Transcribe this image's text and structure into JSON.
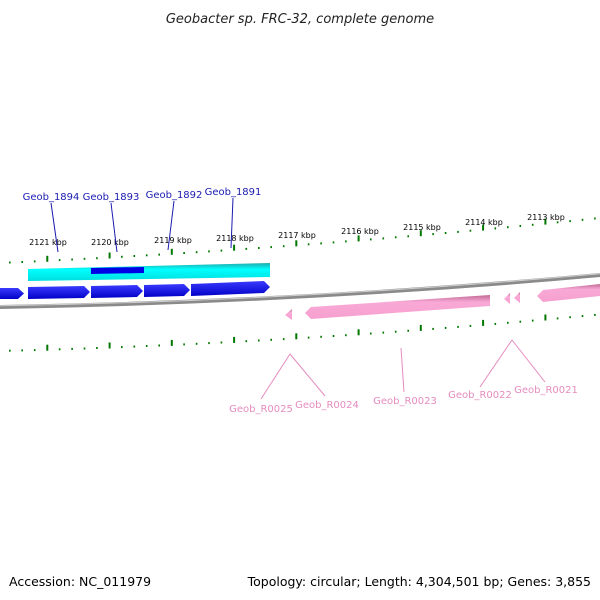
{
  "title": "Geobacter sp. FRC-32, complete genome",
  "footer": {
    "accession": "Accession: NC_011979",
    "summary": "Topology: circular; Length: 4,304,501 bp; Genes: 3,855"
  },
  "colors": {
    "backbone": "#7a7a7a",
    "forward_gene": "#0000e6",
    "forward_cds": "#00e6e6",
    "reverse_rna": "#f8a8d4",
    "tick": "#007700",
    "forward_label": "#1a1ab0",
    "reverse_label": "#e58cbf"
  },
  "scale_labels": [
    "2121 kbp",
    "2120 kbp",
    "2119 kbp",
    "2118 kbp",
    "2117 kbp",
    "2116 kbp",
    "2115 kbp",
    "2114 kbp",
    "2113 kbp"
  ],
  "forward_genes": [
    "Geob_1894",
    "Geob_1893",
    "Geob_1892",
    "Geob_1891"
  ],
  "reverse_features": [
    "Geob_R0025",
    "Geob_R0024",
    "Geob_R0023",
    "Geob_R0022",
    "Geob_R0021"
  ]
}
